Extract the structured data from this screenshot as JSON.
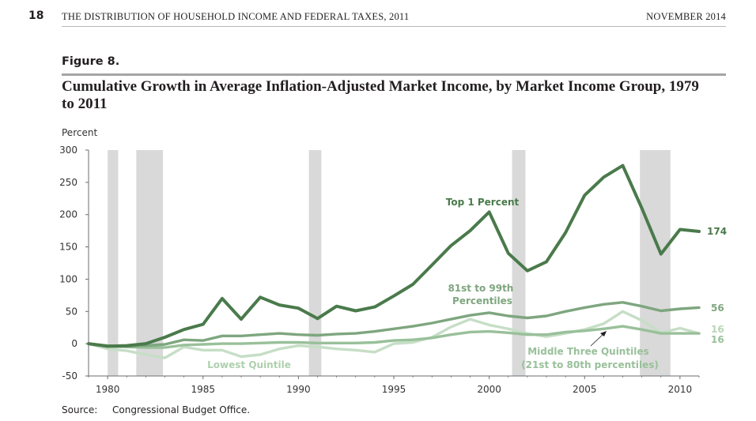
{
  "header": {
    "page_number": "18",
    "left_text": "THE DISTRIBUTION OF HOUSEHOLD INCOME AND FEDERAL TAXES, 2011",
    "right_text": "NOVEMBER 2014"
  },
  "figure": {
    "label": "Figure 8.",
    "title": "Cumulative Growth in Average Inflation-Adjusted Market Income, by Market Income Group, 1979 to 2011"
  },
  "source": {
    "label": "Source:",
    "text": "Congressional Budget Office."
  },
  "colors": {
    "top1": "#4a7a4b",
    "p81_99": "#7ea67f",
    "middle": "#99c09a",
    "lowest": "#c6dec6",
    "recession": "#d9d9d9",
    "axis": "#6d6e71",
    "text": "#231f20"
  },
  "chart_data": {
    "type": "line",
    "ylabel": "Percent",
    "ylim": [
      -50,
      300
    ],
    "yticks": [
      -50,
      0,
      50,
      100,
      150,
      200,
      250,
      300
    ],
    "xlim": [
      1979,
      2011
    ],
    "xticks": [
      1980,
      1985,
      1990,
      1995,
      2000,
      2005,
      2010
    ],
    "x": [
      1979,
      1980,
      1981,
      1982,
      1983,
      1984,
      1985,
      1986,
      1987,
      1988,
      1989,
      1990,
      1991,
      1992,
      1993,
      1994,
      1995,
      1996,
      1997,
      1998,
      1999,
      2000,
      2001,
      2002,
      2003,
      2004,
      2005,
      2006,
      2007,
      2008,
      2009,
      2010,
      2011
    ],
    "recession_shading": [
      [
        1980.0,
        1980.55
      ],
      [
        1981.5,
        1982.9
      ],
      [
        1990.55,
        1991.2
      ],
      [
        2001.2,
        2001.9
      ],
      [
        2007.9,
        2009.5
      ]
    ],
    "series": [
      {
        "id": "top1",
        "name": "Top 1 Percent",
        "values": [
          0,
          -4,
          -3,
          0,
          10,
          22,
          30,
          70,
          38,
          72,
          60,
          55,
          39,
          58,
          51,
          57,
          74,
          92,
          122,
          152,
          175,
          204,
          140,
          113,
          127,
          172,
          230,
          258,
          276,
          210,
          139,
          177,
          174
        ],
        "end_label": "174"
      },
      {
        "id": "p81_99",
        "name": "81st to 99th Percentiles",
        "values": [
          0,
          -3,
          -4,
          -3,
          -1,
          6,
          5,
          12,
          12,
          14,
          16,
          14,
          13,
          15,
          16,
          19,
          23,
          27,
          32,
          38,
          44,
          48,
          43,
          40,
          43,
          50,
          56,
          61,
          64,
          58,
          51,
          54,
          56
        ],
        "end_label": "56"
      },
      {
        "id": "middle",
        "name": "Middle Three Quintiles (21st to 80th percentiles)",
        "values": [
          0,
          -4,
          -5,
          -6,
          -6,
          -2,
          -1,
          0,
          0,
          1,
          2,
          2,
          1,
          1,
          1,
          2,
          5,
          6,
          9,
          14,
          18,
          19,
          17,
          14,
          14,
          18,
          20,
          23,
          27,
          22,
          16,
          16,
          16
        ],
        "end_label": "16"
      },
      {
        "id": "lowest",
        "name": "Lowest Quintile",
        "values": [
          0,
          -8,
          -11,
          -17,
          -22,
          -5,
          -10,
          -10,
          -20,
          -17,
          -8,
          -3,
          -5,
          -8,
          -10,
          -13,
          0,
          2,
          10,
          26,
          38,
          29,
          23,
          16,
          11,
          16,
          22,
          31,
          50,
          36,
          17,
          24,
          16
        ],
        "end_label": "16"
      }
    ]
  }
}
